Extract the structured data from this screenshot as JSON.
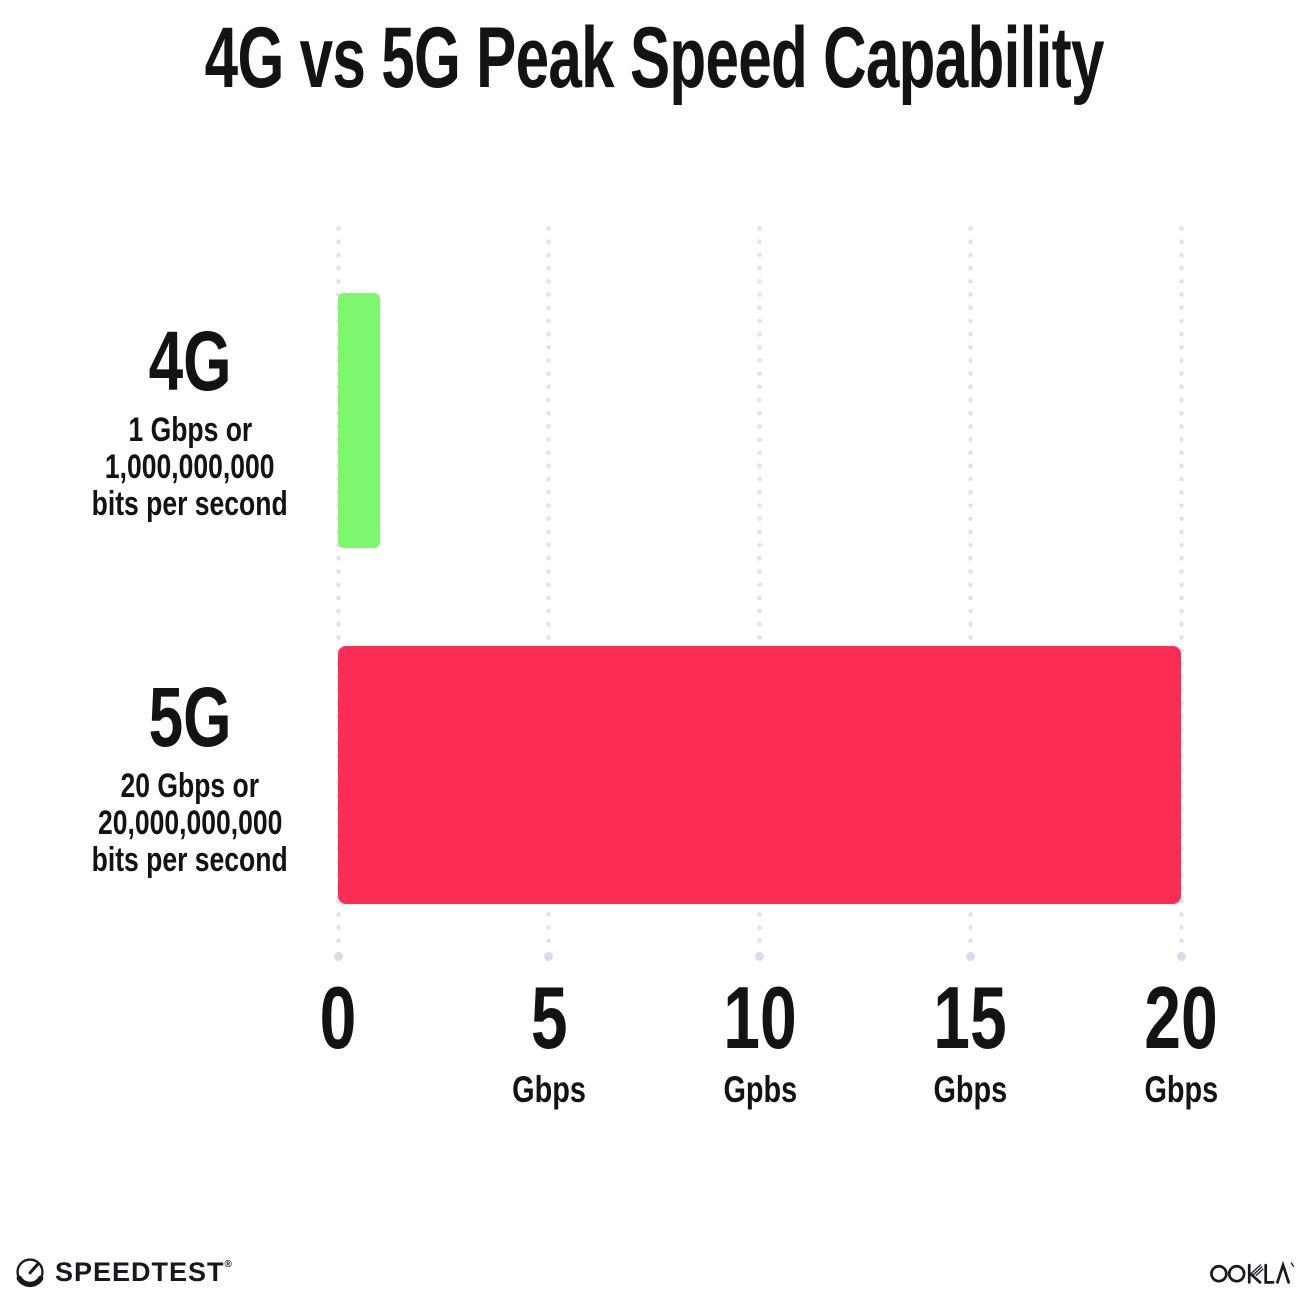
{
  "title": "4G vs 5G Peak Speed Capability",
  "chart_data": {
    "type": "bar",
    "orientation": "horizontal",
    "title": "4G vs 5G Peak Speed Capability",
    "xlim": [
      0,
      20
    ],
    "x_axis_unit": "Gbps",
    "grid": "vertical dotted gridlines at 0, 5, 10, 15, 20 with end dots",
    "legend": "none",
    "categories": [
      "4G",
      "5G"
    ],
    "values": [
      1,
      20
    ],
    "series": [
      {
        "name": "4G",
        "value": 1,
        "unit": "Gbps",
        "color": "#7DF76E",
        "label_lines": [
          "1 Gbps or",
          "1,000,000,000",
          "bits per second"
        ]
      },
      {
        "name": "5G",
        "value": 20,
        "unit": "Gbps",
        "color": "#FC2D55",
        "label_lines": [
          "20 Gbps or",
          "20,000,000,000",
          "bits per second"
        ]
      }
    ],
    "x_ticks": [
      {
        "number": "0",
        "unit": ""
      },
      {
        "number": "5",
        "unit": "Gbps"
      },
      {
        "number": "10",
        "unit": "Gpbs"
      },
      {
        "number": "15",
        "unit": "Gbps"
      },
      {
        "number": "20",
        "unit": "Gbps"
      }
    ]
  },
  "footer": {
    "speedtest_label": "SPEEDTEST",
    "speedtest_mark": "®",
    "ookla_label": "OOKLA"
  },
  "colors": {
    "background": "#FFFFFF",
    "text": "#131313",
    "grid_dot": "#E3E3F0",
    "bar_4g": "#7DF76E",
    "bar_5g": "#FC2D55"
  }
}
